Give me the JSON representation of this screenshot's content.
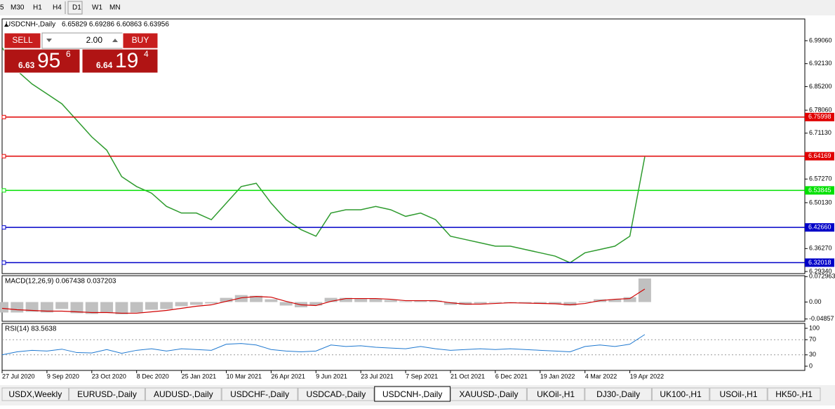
{
  "toolbar": [
    "5",
    "M30",
    "H1",
    "H4",
    "D1",
    "W1",
    "MN"
  ],
  "header": {
    "symbol": "USDCNH-,Daily",
    "ohlc": "6.65829 6.69286 6.60863 6.63956"
  },
  "trade_panel": {
    "sell": "SELL",
    "buy": "BUY",
    "lot": "2.00",
    "sell_big": "6.63",
    "sell_pips": "95",
    "sell_frac": "6",
    "buy_big": "6.64",
    "buy_pips": "19",
    "buy_frac": "4"
  },
  "chart_data": [
    {
      "type": "line",
      "name": "price",
      "title": "USDCNH-,Daily",
      "color": "#2e9b2e",
      "categories": [
        "27 Jul 2020",
        null,
        null,
        "9 Sep 2020",
        null,
        null,
        "23 Oct 2020",
        null,
        null,
        "8 Dec 2020",
        null,
        null,
        "25 Jan 2021",
        null,
        null,
        "10 Mar 2021",
        null,
        null,
        "26 Apr 2021",
        null,
        null,
        "9 Jun 2021",
        null,
        null,
        "23 Jul 2021",
        null,
        null,
        "7 Sep 2021",
        null,
        null,
        "21 Oct 2021",
        null,
        null,
        "6 Dec 2021",
        null,
        null,
        "19 Jan 2022",
        null,
        null,
        "4 Mar 2022",
        null,
        null,
        "19 Apr 2022",
        null
      ],
      "values": [
        6.97,
        6.9,
        6.86,
        6.83,
        6.8,
        6.75,
        6.7,
        6.66,
        6.58,
        6.55,
        6.53,
        6.49,
        6.47,
        6.47,
        6.45,
        6.5,
        6.55,
        6.56,
        6.5,
        6.45,
        6.42,
        6.4,
        6.47,
        6.48,
        6.48,
        6.49,
        6.48,
        6.46,
        6.47,
        6.45,
        6.4,
        6.39,
        6.38,
        6.37,
        6.37,
        6.36,
        6.35,
        6.34,
        6.32,
        6.35,
        6.36,
        6.37,
        6.4,
        6.63956
      ],
      "ylim": [
        6.2871,
        7.0563
      ],
      "yticks": [
        {
          "value": 6.9906,
          "label": "6.99060"
        },
        {
          "value": 6.9213,
          "label": "6.92130"
        },
        {
          "value": 6.852,
          "label": "6.85200"
        },
        {
          "value": 6.7806,
          "label": "6.78060"
        },
        {
          "value": 6.7113,
          "label": "6.71130"
        },
        {
          "value": 6.5727,
          "label": "6.57270"
        },
        {
          "value": 6.5013,
          "label": "6.50130"
        },
        {
          "value": 6.3627,
          "label": "6.36270"
        },
        {
          "value": 6.2934,
          "label": "6.29340"
        }
      ],
      "levels": [
        {
          "value": 6.75998,
          "label": "6.75998",
          "color": "#e00000"
        },
        {
          "value": 6.64169,
          "label": "6.64169",
          "color": "#e00000"
        },
        {
          "value": 6.53845,
          "label": "6.53845",
          "color": "#00e000"
        },
        {
          "value": 6.4266,
          "label": "6.42660",
          "color": "#0000c8"
        },
        {
          "value": 6.32018,
          "label": "6.32018",
          "color": "#0000c8"
        }
      ]
    },
    {
      "type": "macd",
      "title": "MACD(12,26,9) 0.067438 0.037203",
      "color": "#c0c0c0",
      "signal_color": "#d00000",
      "values": [
        -0.03,
        -0.03,
        -0.028,
        -0.03,
        -0.02,
        -0.032,
        -0.034,
        -0.03,
        -0.035,
        -0.03,
        -0.022,
        -0.02,
        -0.012,
        -0.008,
        -0.004,
        0.012,
        0.02,
        0.018,
        0.008,
        -0.01,
        -0.015,
        -0.01,
        0.012,
        0.012,
        0.01,
        0.01,
        0.006,
        0.002,
        0.004,
        0.004,
        -0.008,
        -0.008,
        -0.004,
        -0.002,
        -0.002,
        -0.004,
        -0.004,
        -0.006,
        -0.01,
        0.002,
        0.008,
        0.008,
        0.014,
        0.067438
      ],
      "signal": [
        -0.018,
        -0.022,
        -0.024,
        -0.026,
        -0.026,
        -0.028,
        -0.03,
        -0.03,
        -0.032,
        -0.032,
        -0.028,
        -0.024,
        -0.018,
        -0.012,
        -0.008,
        0.002,
        0.012,
        0.016,
        0.014,
        0.002,
        -0.008,
        -0.01,
        0.002,
        0.01,
        0.01,
        0.01,
        0.008,
        0.004,
        0.004,
        0.004,
        -0.002,
        -0.006,
        -0.006,
        -0.004,
        -0.002,
        -0.003,
        -0.004,
        -0.005,
        -0.008,
        -0.004,
        0.004,
        0.008,
        0.01,
        0.037203
      ],
      "ylim": [
        -0.0552,
        0.0755
      ],
      "yticks": [
        0.072963,
        {
          "value": 0,
          "label": "0.00"
        },
        -0.04857
      ]
    },
    {
      "type": "rsi",
      "title": "RSI(14) 83.5638",
      "color": "#1e78d0",
      "values": [
        30,
        38,
        42,
        40,
        45,
        36,
        35,
        44,
        34,
        42,
        46,
        40,
        46,
        44,
        42,
        58,
        60,
        56,
        44,
        40,
        38,
        40,
        56,
        52,
        54,
        50,
        48,
        46,
        52,
        46,
        42,
        44,
        46,
        44,
        46,
        44,
        42,
        40,
        38,
        52,
        56,
        52,
        58,
        83.5638
      ],
      "ylim": [
        0,
        100
      ],
      "yticks": [
        100,
        70,
        30,
        0
      ]
    }
  ],
  "tabs": [
    "USDX,Weekly",
    "EURUSD-,Daily",
    "AUDUSD-,Daily",
    "USDCHF-,Daily",
    "USDCAD-,Daily",
    "USDCNH-,Daily",
    "XAUUSD-,Daily",
    "UKOil-,H1",
    "DJ30-,Daily",
    "UK100-,H1",
    "USOil-,H1",
    "HK50-,H1"
  ],
  "active_tab": 5
}
